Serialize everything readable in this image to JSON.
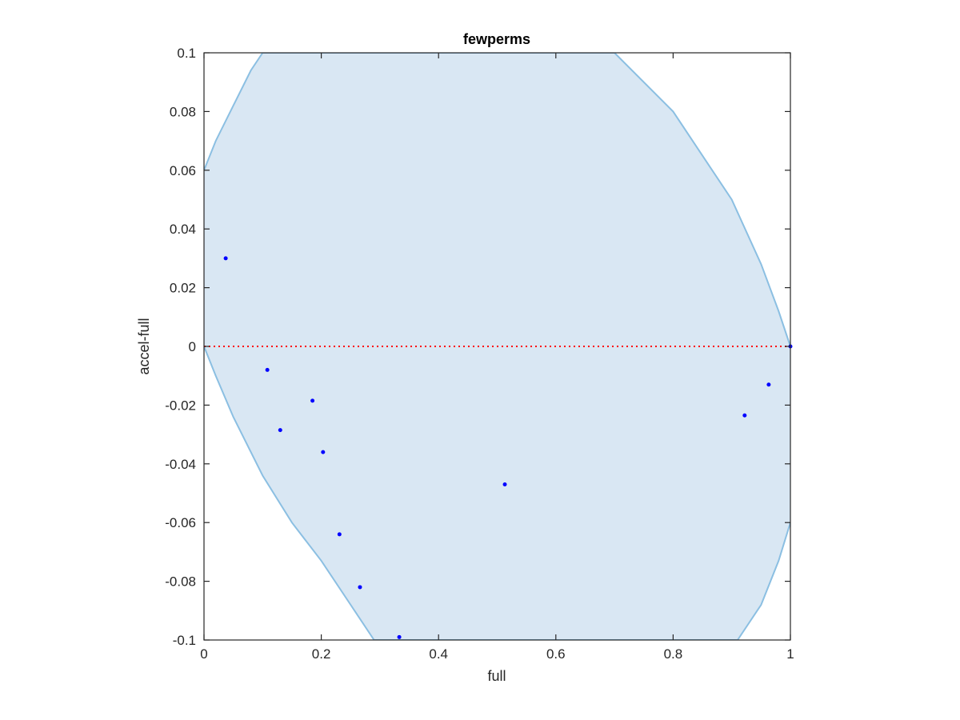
{
  "chart_data": {
    "type": "scatter",
    "title": "fewperms",
    "xlabel": "full",
    "ylabel": "accel-full",
    "xlim": [
      0,
      1
    ],
    "ylim": [
      -0.1,
      0.1
    ],
    "xticks": [
      0,
      0.2,
      0.4,
      0.6,
      0.8,
      1
    ],
    "xtick_labels": [
      "0",
      "0.2",
      "0.4",
      "0.6",
      "0.8",
      "1"
    ],
    "yticks": [
      -0.1,
      -0.08,
      -0.06,
      -0.04,
      -0.02,
      0,
      0.02,
      0.04,
      0.06,
      0.08,
      0.1
    ],
    "ytick_labels": [
      "-0.1",
      "-0.08",
      "-0.06",
      "-0.04",
      "-0.02",
      "0",
      "0.02",
      "0.04",
      "0.06",
      "0.08",
      "0.1"
    ],
    "grid": false,
    "points": {
      "x": [
        0.037,
        0.108,
        0.13,
        0.185,
        0.203,
        0.231,
        0.266,
        0.333,
        0.513,
        0.922,
        0.963,
        1.0
      ],
      "y": [
        0.03,
        -0.008,
        -0.0285,
        -0.0185,
        -0.036,
        -0.064,
        -0.082,
        -0.099,
        -0.047,
        -0.0235,
        -0.013,
        0.0
      ],
      "color": "#0000ff"
    },
    "reference_line": {
      "y": 0,
      "color": "#ff0000",
      "style": "dotted"
    },
    "shaded_region": {
      "description_curve": "confidence band shown as x*(1-x) envelope",
      "fill_color": "#d9e7f3",
      "edge_color": "#8bbfe2",
      "upper": {
        "x": [
          0,
          0.02,
          0.05,
          0.08,
          0.1,
          0.2,
          0.3,
          0.4,
          0.5,
          0.6,
          0.7,
          0.8,
          0.9,
          0.95,
          0.98,
          1.0
        ],
        "y": [
          0.06,
          0.07,
          0.082,
          0.094,
          0.1,
          0.1,
          0.1,
          0.1,
          0.1,
          0.1,
          0.1,
          0.08,
          0.05,
          0.028,
          0.012,
          0
        ]
      },
      "lower": {
        "x": [
          0,
          0.02,
          0.05,
          0.1,
          0.15,
          0.2,
          0.25,
          0.29,
          0.3,
          0.5,
          0.7,
          0.9,
          0.91,
          0.95,
          0.98,
          1.0
        ],
        "y": [
          0,
          -0.01,
          -0.024,
          -0.044,
          -0.06,
          -0.073,
          -0.088,
          -0.1,
          -0.1,
          -0.1,
          -0.1,
          -0.1,
          -0.1,
          -0.088,
          -0.073,
          -0.06
        ]
      }
    }
  }
}
